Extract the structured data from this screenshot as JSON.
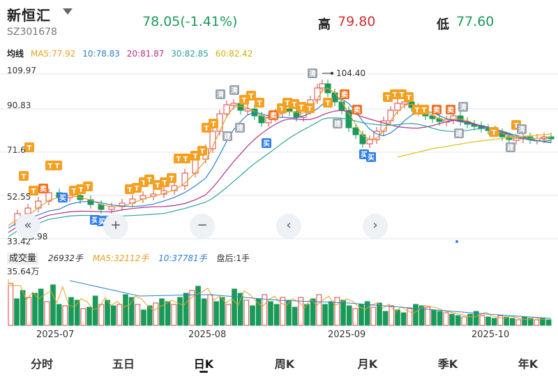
{
  "header": {
    "name": "新恒汇",
    "code": "SZ301678",
    "price_change": "78.05(-1.41%)",
    "high_label": "高",
    "high_value": "79.80",
    "low_label": "低",
    "low_value": "77.60"
  },
  "ma_legend": {
    "title": "均线",
    "ma5": "MA5:77.92",
    "ma10": "10:78.83",
    "ma20": "20:81.87",
    "ma30": "30:82.85",
    "ma60": "60:82.42"
  },
  "colors": {
    "up": "#d84040",
    "down": "#1a9a58",
    "ma5": "#e8a020",
    "ma10": "#2f7ec8",
    "ma20": "#b0308a",
    "ma30": "#2aa39a",
    "ma60": "#e0c020",
    "marker_t": "#f5a020",
    "marker_sell": "#f07020",
    "marker_buy": "#2f7ee8",
    "marker_grey": "#9aa3ad"
  },
  "y_axis": {
    "labels": [
      "109.97",
      "90.83",
      "71.6",
      "52.55",
      "33.42"
    ],
    "max_label": "104.40",
    "min_label": "38.98"
  },
  "nav_buttons": {
    "back": "«",
    "zoom_in": "+",
    "zoom_out": "−",
    "prev": "‹",
    "next": "›"
  },
  "volume": {
    "box_label": "成交量",
    "value": "26932手",
    "ma5": "MA5:32112手",
    "ma10": "10:37781手",
    "after_hours": "盘后:1手",
    "axis_label": "35.64万"
  },
  "x_axis": [
    "2025-07",
    "2025-08",
    "2025-09",
    "2025-10"
  ],
  "tabs": [
    "分时",
    "五日",
    "日K",
    "周K",
    "月K",
    "季K",
    "年K"
  ],
  "active_tab": "日K",
  "markers": {
    "t": "T",
    "sell": "卖",
    "buy": "买",
    "clear": "清",
    "build": "建"
  },
  "chart_data": {
    "type": "candlestick",
    "y_range": [
      33.42,
      109.97
    ],
    "series_shape": "daily candles rising from ~40 in early July to a peak of 104.40 in late August, then declining gradually to ~78 in October",
    "volume_max": "35.64万"
  }
}
